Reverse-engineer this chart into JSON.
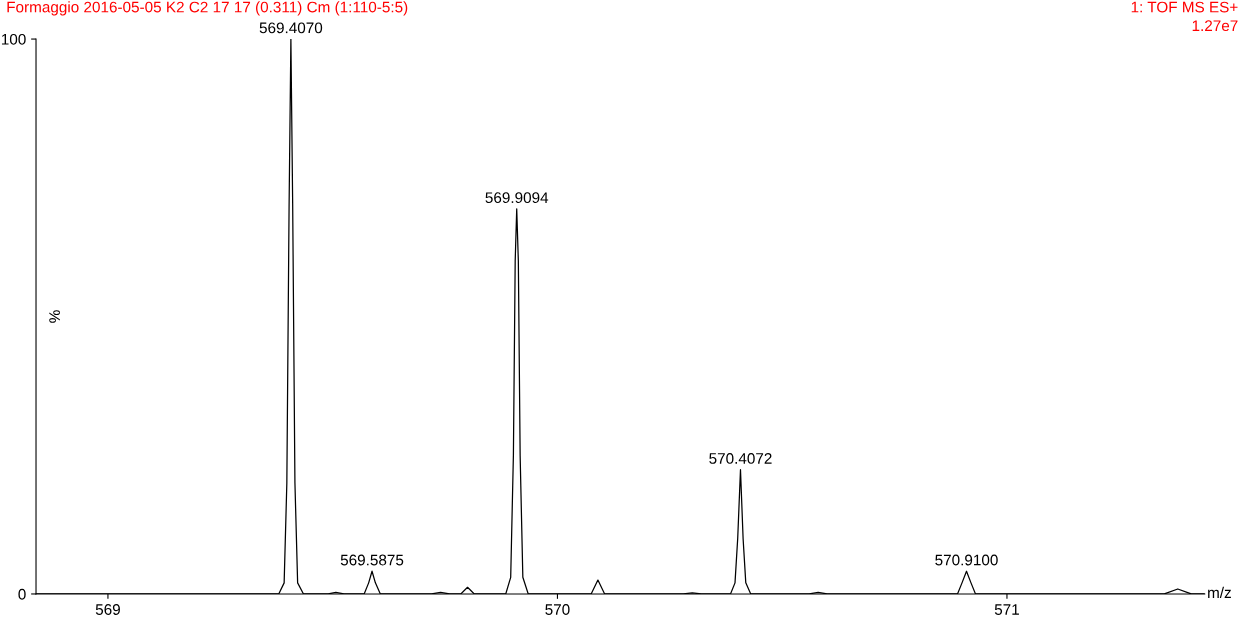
{
  "chart_data": {
    "type": "line",
    "title": "Formaggio 2016-05-05 K2 C2 17 17 (0.311) Cm (1:110-5:5)",
    "xlabel": "m/z",
    "ylabel": "%",
    "annotations": [
      "1: TOF MS ES+",
      "1.27e7",
      {
        "text": "569.4070",
        "x": 569.407,
        "y": 100
      },
      {
        "text": "569.5875",
        "x": 569.5875,
        "y": 4.1
      },
      {
        "text": "569.9094",
        "x": 569.9094,
        "y": 69.4
      },
      {
        "text": "570.4072",
        "x": 570.4072,
        "y": 22.4
      },
      {
        "text": "570.9100",
        "x": 570.91,
        "y": 4.1
      }
    ],
    "series": [
      {
        "color": "#000000",
        "x": [
          568.84,
          569.38,
          569.392,
          569.398,
          569.403,
          569.407,
          569.411,
          569.416,
          569.422,
          569.435,
          569.49,
          569.507,
          569.525,
          569.57,
          569.58,
          569.5875,
          569.595,
          569.606,
          569.72,
          569.74,
          569.76,
          569.785,
          569.8,
          569.815,
          569.885,
          569.896,
          569.902,
          569.906,
          569.9094,
          569.913,
          569.917,
          569.923,
          569.935,
          570.075,
          570.09,
          570.105,
          570.28,
          570.3,
          570.32,
          570.385,
          570.395,
          570.401,
          570.4072,
          570.413,
          570.419,
          570.43,
          570.56,
          570.58,
          570.6,
          570.89,
          570.9,
          570.91,
          570.92,
          570.93,
          571.35,
          571.38,
          571.41,
          571.44
        ],
        "values": [
          0,
          0,
          2,
          20,
          70,
          100,
          70,
          20,
          2,
          0,
          0,
          0.3,
          0,
          0,
          2,
          4.1,
          2,
          0,
          0,
          0.3,
          0,
          0,
          1.2,
          0,
          0,
          3,
          25,
          60,
          69.4,
          60,
          25,
          3,
          0,
          0,
          2.5,
          0,
          0,
          0.2,
          0,
          0,
          2,
          10,
          22.4,
          10,
          2,
          0,
          0,
          0.3,
          0,
          0,
          2,
          4.1,
          2,
          0,
          0,
          0.9,
          0,
          0
        ]
      }
    ],
    "xlim": [
      568.84,
      571.44
    ],
    "xticks": [
      569,
      570,
      571
    ],
    "ylim": [
      0,
      100
    ],
    "yticks": [
      0,
      100
    ],
    "grid": false,
    "legend": false,
    "marker": "none",
    "line_style": "solid"
  }
}
